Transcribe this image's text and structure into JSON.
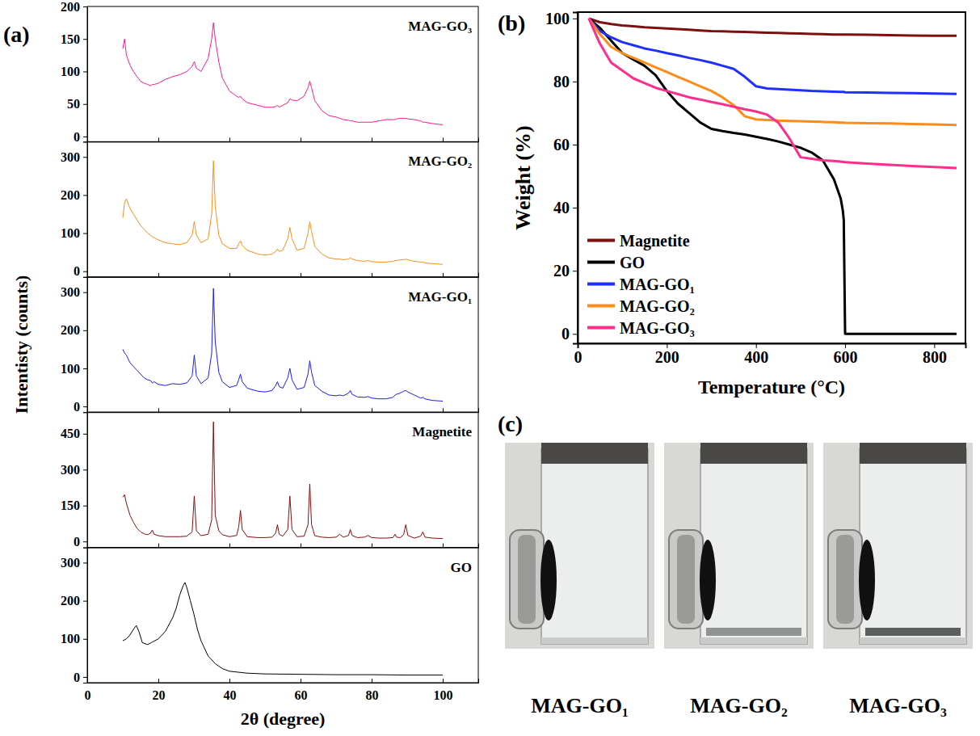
{
  "panel_labels": [
    "(a)",
    "(b)",
    "(c)"
  ],
  "photo_captions": [
    "MAG-GO₁",
    "MAG-GO₂",
    "MAG-GO₃"
  ],
  "chart_data": [
    {
      "type": "line",
      "x": [
        10,
        10.5,
        11,
        12,
        13,
        14,
        15,
        16,
        17,
        17.8,
        18.3,
        18.8,
        20,
        22,
        24,
        26,
        28,
        29.5,
        30.1,
        30.7,
        32,
        34,
        35,
        35.5,
        36,
        37,
        38,
        40,
        42,
        42.6,
        43.1,
        43.6,
        45,
        48,
        50,
        52,
        53,
        53.5,
        54,
        55,
        56.4,
        57,
        57.6,
        59,
        61,
        62.1,
        62.6,
        63.1,
        64,
        66,
        68,
        70,
        71,
        72,
        73.5,
        74,
        74.5,
        76,
        78,
        79,
        80,
        82,
        84,
        86,
        86.6,
        87,
        88,
        89,
        89.6,
        90.2,
        92,
        93.8,
        94.4,
        95,
        97,
        100
      ],
      "series": [
        {
          "name": "MAG-GO₃",
          "color": "#ff1a8c",
          "values": [
            135,
            150,
            125,
            110,
            100,
            92,
            85,
            82,
            80,
            78,
            80,
            80,
            82,
            88,
            92,
            95,
            100,
            108,
            115,
            105,
            100,
            120,
            150,
            175,
            150,
            115,
            90,
            70,
            62,
            60,
            62,
            58,
            52,
            48,
            45,
            45,
            46,
            48,
            45,
            48,
            52,
            58,
            56,
            55,
            62,
            75,
            85,
            75,
            55,
            40,
            32,
            30,
            28,
            26,
            25,
            24,
            24,
            22,
            22,
            22,
            22,
            24,
            26,
            26,
            26,
            27,
            28,
            28,
            28,
            27,
            26,
            24,
            22,
            22,
            20,
            18
          ]
        }
      ],
      "xlim": [
        0,
        110
      ],
      "xticks": [
        0,
        20,
        40,
        60,
        80,
        100
      ],
      "ylim": [
        -8,
        200
      ],
      "yticks": [
        0,
        50,
        100,
        150,
        200
      ],
      "tick_labels": "y"
    },
    {
      "type": "line",
      "x": [
        10,
        10.5,
        11,
        12,
        13,
        14,
        15,
        16,
        17,
        17.8,
        18.3,
        18.8,
        20,
        22,
        24,
        26,
        28,
        29.5,
        30.1,
        30.7,
        32,
        34,
        35,
        35.5,
        36,
        37,
        38,
        40,
        42,
        42.6,
        43.1,
        43.6,
        45,
        48,
        50,
        52,
        53,
        53.5,
        54,
        55,
        56.4,
        57,
        57.6,
        59,
        61,
        62.1,
        62.6,
        63.1,
        64,
        66,
        68,
        70,
        71,
        72,
        73.5,
        74,
        74.5,
        76,
        78,
        79,
        80,
        82,
        84,
        86,
        86.6,
        87,
        88,
        89,
        89.6,
        90.2,
        92,
        93.8,
        94.4,
        95,
        97,
        100
      ],
      "series": [
        {
          "name": "MAG-GO₂",
          "color": "#ff8c1a",
          "values": [
            140,
            180,
            190,
            165,
            150,
            135,
            120,
            110,
            100,
            95,
            90,
            88,
            82,
            75,
            72,
            70,
            75,
            95,
            130,
            95,
            75,
            85,
            150,
            290,
            170,
            95,
            72,
            60,
            60,
            72,
            80,
            68,
            55,
            45,
            42,
            45,
            52,
            58,
            52,
            55,
            85,
            115,
            85,
            55,
            60,
            100,
            130,
            105,
            65,
            45,
            35,
            32,
            32,
            30,
            32,
            35,
            32,
            28,
            26,
            28,
            25,
            24,
            24,
            26,
            28,
            28,
            30,
            30,
            32,
            30,
            26,
            24,
            24,
            22,
            20,
            18
          ]
        }
      ],
      "xlim": [
        0,
        110
      ],
      "xticks": [
        0,
        20,
        40,
        60,
        80,
        100
      ],
      "ylim": [
        -15,
        340
      ],
      "yticks": [
        0,
        100,
        200,
        300
      ],
      "tick_labels": "y"
    },
    {
      "type": "line",
      "ylabel": "Intentisty (counts)",
      "x": [
        10,
        10.5,
        11,
        12,
        13,
        14,
        15,
        16,
        17,
        17.8,
        18.3,
        18.8,
        20,
        22,
        24,
        26,
        28,
        29.5,
        30.1,
        30.7,
        32,
        34,
        35,
        35.5,
        36,
        37,
        38,
        40,
        42,
        42.6,
        43.1,
        43.6,
        45,
        48,
        50,
        52,
        53,
        53.5,
        54,
        55,
        56.4,
        57,
        57.6,
        59,
        61,
        62.1,
        62.6,
        63.1,
        64,
        66,
        68,
        70,
        71,
        72,
        73.5,
        74,
        74.5,
        76,
        78,
        79,
        80,
        82,
        84,
        86,
        86.6,
        87,
        88,
        89,
        89.6,
        90.2,
        92,
        93.8,
        94.4,
        95,
        97,
        100
      ],
      "series": [
        {
          "name": "MAG-GO₁",
          "color": "#1a1aff",
          "values": [
            150,
            140,
            135,
            115,
            105,
            95,
            85,
            75,
            70,
            68,
            62,
            65,
            58,
            55,
            60,
            58,
            62,
            80,
            135,
            80,
            60,
            75,
            140,
            310,
            170,
            90,
            65,
            50,
            55,
            70,
            85,
            65,
            48,
            40,
            38,
            42,
            55,
            65,
            52,
            48,
            75,
            100,
            70,
            45,
            50,
            85,
            120,
            90,
            55,
            40,
            30,
            28,
            30,
            28,
            35,
            42,
            32,
            25,
            24,
            26,
            22,
            20,
            20,
            24,
            30,
            32,
            35,
            40,
            42,
            38,
            30,
            22,
            24,
            20,
            16,
            14
          ]
        }
      ],
      "xlim": [
        0,
        110
      ],
      "xticks": [
        0,
        20,
        40,
        60,
        80,
        100
      ],
      "ylim": [
        -15,
        340
      ],
      "yticks": [
        0,
        100,
        200,
        300
      ],
      "tick_labels": "y"
    },
    {
      "type": "line",
      "x": [
        10,
        10.5,
        11,
        12,
        13,
        14,
        15,
        16,
        17,
        17.8,
        18.3,
        18.8,
        20,
        22,
        24,
        26,
        28,
        29.5,
        30.1,
        30.7,
        32,
        34,
        35,
        35.5,
        36,
        37,
        38,
        40,
        42,
        42.6,
        43.1,
        43.6,
        45,
        48,
        50,
        52,
        53,
        53.5,
        54,
        55,
        56.4,
        57,
        57.6,
        59,
        61,
        62.1,
        62.6,
        63.1,
        64,
        66,
        68,
        70,
        71,
        72,
        73.5,
        74,
        74.5,
        76,
        78,
        79,
        80,
        82,
        84,
        86,
        86.6,
        87,
        88,
        89,
        89.6,
        90.2,
        92,
        93.8,
        94.4,
        95,
        97,
        100
      ],
      "series": [
        {
          "name": "Magnetite",
          "color": "#8b0a0a",
          "values": [
            185,
            195,
            160,
            110,
            80,
            55,
            40,
            32,
            28,
            35,
            48,
            30,
            24,
            20,
            20,
            20,
            22,
            40,
            190,
            45,
            24,
            30,
            90,
            500,
            110,
            45,
            28,
            20,
            25,
            60,
            130,
            50,
            20,
            16,
            16,
            18,
            35,
            70,
            30,
            22,
            50,
            190,
            50,
            20,
            22,
            70,
            240,
            70,
            24,
            18,
            16,
            18,
            30,
            18,
            25,
            50,
            25,
            16,
            18,
            25,
            16,
            14,
            14,
            16,
            30,
            18,
            16,
            28,
            70,
            25,
            14,
            22,
            40,
            18,
            14,
            12
          ]
        }
      ],
      "xlim": [
        0,
        110
      ],
      "xticks": [
        0,
        20,
        40,
        60,
        80,
        100
      ],
      "ylim": [
        -25,
        540
      ],
      "yticks": [
        0,
        150,
        300,
        450
      ],
      "tick_labels": "y"
    },
    {
      "type": "line",
      "xlabel": "2θ (degree)",
      "x": [
        10,
        11,
        12,
        13,
        13.8,
        14.5,
        15.5,
        17,
        18,
        20,
        22,
        24,
        25,
        26,
        27,
        27.5,
        28,
        29,
        30,
        31,
        32,
        34,
        36,
        38,
        40,
        45,
        50,
        60,
        70,
        80,
        90,
        100
      ],
      "series": [
        {
          "name": "GO",
          "color": "#000000",
          "values": [
            95,
            100,
            110,
            125,
            135,
            120,
            90,
            85,
            90,
            100,
            120,
            155,
            180,
            215,
            240,
            248,
            235,
            200,
            165,
            125,
            95,
            55,
            35,
            22,
            15,
            10,
            8,
            7,
            6,
            6,
            5,
            5
          ]
        }
      ],
      "xlim": [
        0,
        110
      ],
      "xticks": [
        0,
        20,
        40,
        60,
        80,
        100
      ],
      "ylim": [
        -15,
        340
      ],
      "yticks": [
        0,
        100,
        200,
        300
      ]
    },
    {
      "type": "line",
      "xlabel": "Temperature (°C)",
      "ylabel": "Weight (%)",
      "x": [
        25,
        50,
        75,
        100,
        125,
        150,
        175,
        200,
        225,
        250,
        275,
        300,
        325,
        350,
        375,
        400,
        425,
        450,
        475,
        500,
        525,
        550,
        575,
        590,
        595,
        597,
        600,
        650,
        700,
        750,
        800,
        850
      ],
      "series": [
        {
          "name": "Magnetite",
          "color": "#7b1010",
          "values": [
            100,
            98.8,
            98.2,
            97.8,
            97.5,
            97.2,
            97,
            96.8,
            96.6,
            96.4,
            96.2,
            96,
            95.9,
            95.8,
            95.7,
            95.6,
            95.5,
            95.4,
            95.3,
            95.2,
            95.1,
            95,
            94.9,
            94.9,
            94.9,
            94.9,
            94.9,
            94.8,
            94.7,
            94.6,
            94.5,
            94.5
          ]
        },
        {
          "name": "GO",
          "color": "#000000",
          "values": [
            100,
            97,
            93,
            89,
            87,
            85,
            82,
            77,
            73,
            70,
            67,
            65,
            64.3,
            63.7,
            63.2,
            62.5,
            61.8,
            61,
            60,
            59,
            57.5,
            55,
            49,
            43,
            39,
            36,
            0,
            0,
            0,
            0,
            0,
            0
          ]
        },
        {
          "name": "MAG-GO₁",
          "color": "#1f2fff",
          "values": [
            100,
            96,
            94,
            92.5,
            91.5,
            90.5,
            89.8,
            89,
            88.3,
            87.5,
            86.8,
            86,
            85,
            84,
            81.5,
            78.5,
            77.8,
            77.6,
            77.4,
            77.2,
            77,
            76.9,
            76.8,
            76.7,
            76.7,
            76.7,
            76.6,
            76.5,
            76.4,
            76.3,
            76.2,
            76.1
          ]
        },
        {
          "name": "MAG-GO₂",
          "color": "#ff8c1a",
          "values": [
            100,
            95,
            91,
            89,
            87.5,
            86,
            84.5,
            83,
            81.5,
            80,
            78.5,
            77,
            75,
            72.5,
            69,
            68,
            67.8,
            67.6,
            67.5,
            67.4,
            67.3,
            67.2,
            67.1,
            67,
            67,
            67,
            66.9,
            66.8,
            66.7,
            66.5,
            66.4,
            66.2
          ]
        },
        {
          "name": "MAG-GO₃",
          "color": "#ff2e8c",
          "values": [
            100,
            92,
            86,
            83.5,
            81,
            79.5,
            78,
            77,
            76,
            75,
            74.3,
            73.5,
            72.8,
            72,
            71.2,
            70.5,
            69.5,
            67,
            62,
            56,
            55.5,
            55,
            54.8,
            54.6,
            54.5,
            54.5,
            54.4,
            54,
            53.6,
            53.2,
            52.9,
            52.6
          ]
        }
      ],
      "xlim": [
        0,
        870
      ],
      "xticks": [
        0,
        200,
        400,
        600,
        800
      ],
      "ylim": [
        -3,
        102
      ],
      "yticks": [
        0,
        20,
        40,
        60,
        80,
        100
      ],
      "legend": "left"
    }
  ]
}
